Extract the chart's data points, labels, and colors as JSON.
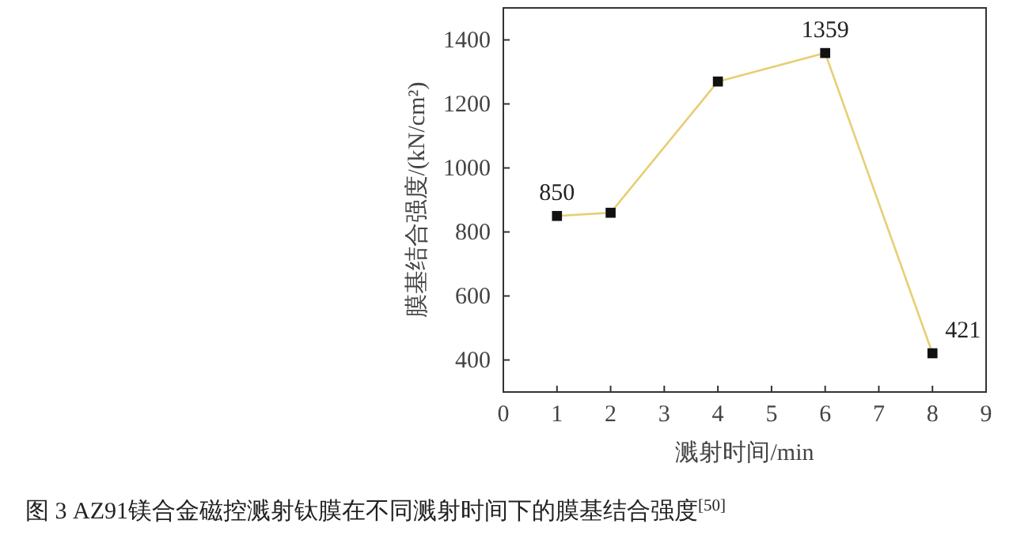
{
  "chart_data": {
    "type": "line",
    "xlabel": "溅射时间/min",
    "ylabel": "膜基结合强度/(kN/cm²)",
    "annotations": [
      "图 3 AZ91镁合金磁控溅射钛膜在不同溅射时间下的膜基结合强度$^{[50]}$"
    ],
    "x": [
      1,
      2,
      4,
      6,
      8
    ],
    "series": [
      {
        "color": "#e6cf73",
        "values": [
          850,
          860,
          1270,
          1359,
          421
        ],
        "value_labels": [
          "850",
          null,
          null,
          "1359",
          "421"
        ]
      }
    ],
    "xlim": [
      0,
      9
    ],
    "xticks": [
      0,
      1,
      2,
      3,
      4,
      5,
      6,
      7,
      8,
      9
    ],
    "ylim": [
      300,
      1500
    ],
    "yticks": [
      400,
      600,
      800,
      1000,
      1200,
      1400
    ],
    "grid": false,
    "marker": "square"
  }
}
